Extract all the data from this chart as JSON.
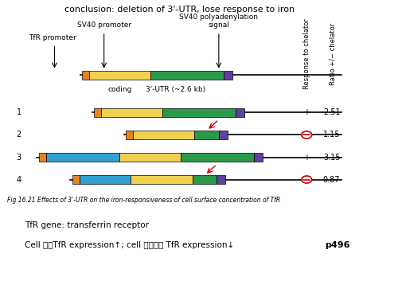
{
  "title": "conclusion: deletion of 3'-UTR, lose response to iron",
  "fig_caption": "Fig 16.21 Effects of 3'-UTR on the iron-responsiveness of cell surface concentration of TfR",
  "note1": "TfR gene: transferrin receptor",
  "note2": "Cell 缺鐵TfR expression↑; cell 不缺鐵： TfR expression↓",
  "note3": "p496",
  "right_label1": "Response to chelator",
  "right_label2": "Ratio +/− chelator",
  "col_header_response": [
    "+",
    "⊖",
    "+",
    "⊖"
  ],
  "col_header_ratio": [
    "2.51",
    "1.15",
    "3.15",
    "0.87"
  ],
  "row_labels": [
    "1",
    "2",
    "3",
    "4"
  ],
  "colors": {
    "orange": "#E8821A",
    "yellow": "#F0D050",
    "green": "#2A9A4A",
    "blue": "#30A0D0",
    "purple": "#6040A0",
    "black": "#000000",
    "red": "#CC0000",
    "white": "#FFFFFF",
    "bg": "#FFFFFF"
  },
  "arrow_labels": {
    "TfR_promoter": "TfR promoter",
    "SV40_promoter": "SV40 promoter",
    "SV40_polyA": "SV40 polyadenylation\nsignal",
    "coding": "coding",
    "utr": "3'-UTR (~2.6 kb)"
  }
}
